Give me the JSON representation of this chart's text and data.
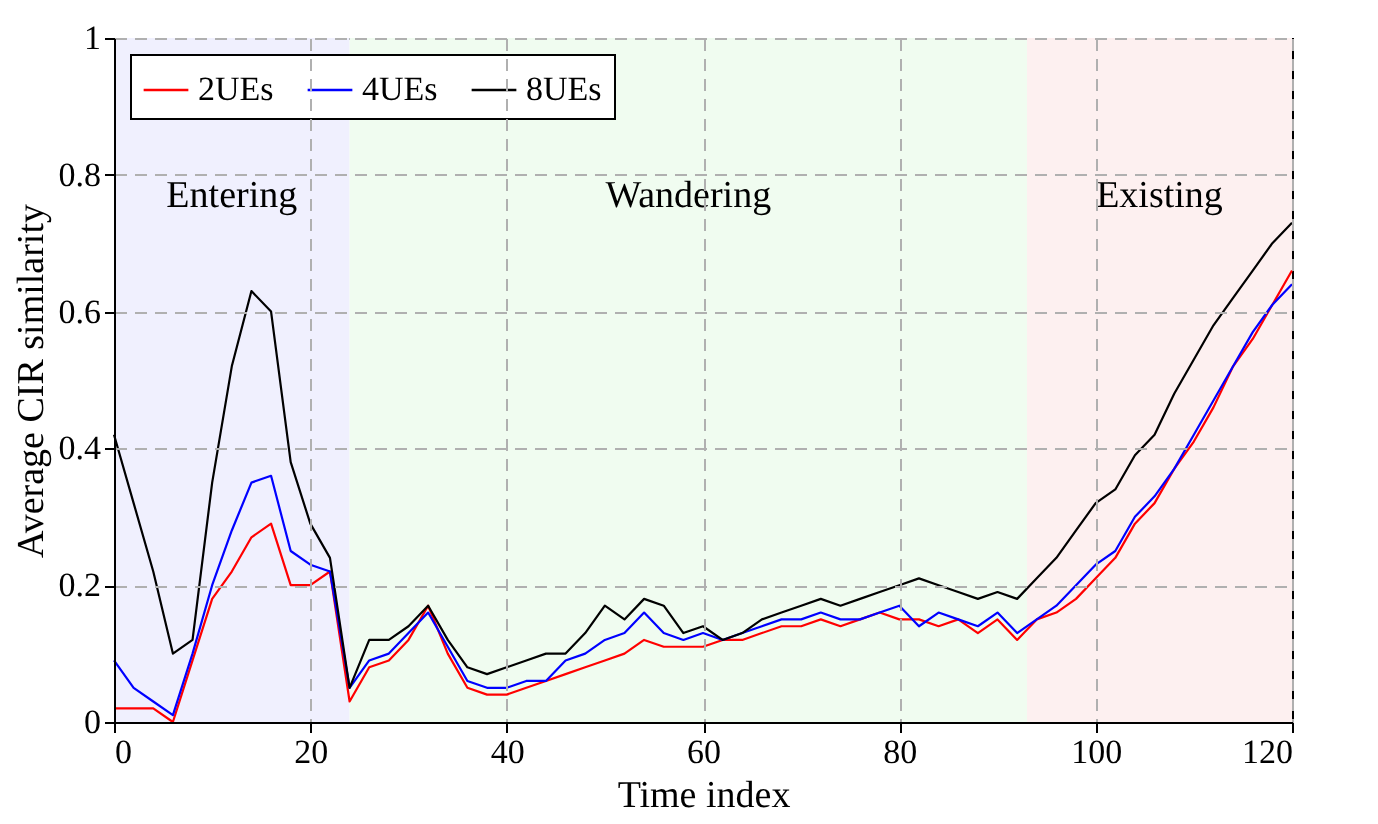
{
  "chart_data": {
    "type": "line",
    "xlabel": "Time index",
    "ylabel": "Average CIR similarity",
    "x": [
      0,
      2,
      4,
      6,
      8,
      10,
      12,
      14,
      16,
      18,
      20,
      22,
      24,
      26,
      28,
      30,
      32,
      34,
      36,
      38,
      40,
      42,
      44,
      46,
      48,
      50,
      52,
      54,
      56,
      58,
      60,
      62,
      64,
      66,
      68,
      70,
      72,
      74,
      76,
      78,
      80,
      82,
      84,
      86,
      88,
      90,
      92,
      94,
      96,
      98,
      100,
      102,
      104,
      106,
      108,
      110,
      112,
      114,
      116,
      118,
      120
    ],
    "series": [
      {
        "name": "2UEs",
        "color": "#ff0000",
        "values": [
          0.02,
          0.02,
          0.02,
          0.0,
          0.09,
          0.18,
          0.22,
          0.27,
          0.29,
          0.2,
          0.2,
          0.22,
          0.03,
          0.08,
          0.09,
          0.12,
          0.17,
          0.1,
          0.05,
          0.04,
          0.04,
          0.05,
          0.06,
          0.07,
          0.08,
          0.09,
          0.1,
          0.12,
          0.11,
          0.11,
          0.11,
          0.12,
          0.12,
          0.13,
          0.14,
          0.14,
          0.15,
          0.14,
          0.15,
          0.16,
          0.15,
          0.15,
          0.14,
          0.15,
          0.13,
          0.15,
          0.12,
          0.15,
          0.16,
          0.18,
          0.21,
          0.24,
          0.29,
          0.32,
          0.37,
          0.41,
          0.46,
          0.52,
          0.56,
          0.61,
          0.66
        ]
      },
      {
        "name": "4UEs",
        "color": "#0000ff",
        "values": [
          0.09,
          0.05,
          0.03,
          0.01,
          0.1,
          0.2,
          0.28,
          0.35,
          0.36,
          0.25,
          0.23,
          0.22,
          0.05,
          0.09,
          0.1,
          0.13,
          0.16,
          0.11,
          0.06,
          0.05,
          0.05,
          0.06,
          0.06,
          0.09,
          0.1,
          0.12,
          0.13,
          0.16,
          0.13,
          0.12,
          0.13,
          0.12,
          0.13,
          0.14,
          0.15,
          0.15,
          0.16,
          0.15,
          0.15,
          0.16,
          0.17,
          0.14,
          0.16,
          0.15,
          0.14,
          0.16,
          0.13,
          0.15,
          0.17,
          0.2,
          0.23,
          0.25,
          0.3,
          0.33,
          0.37,
          0.42,
          0.47,
          0.52,
          0.57,
          0.61,
          0.64
        ]
      },
      {
        "name": "8UEs",
        "color": "#000000",
        "values": [
          0.42,
          0.32,
          0.22,
          0.1,
          0.12,
          0.35,
          0.52,
          0.63,
          0.6,
          0.38,
          0.29,
          0.24,
          0.05,
          0.12,
          0.12,
          0.14,
          0.17,
          0.12,
          0.08,
          0.07,
          0.08,
          0.09,
          0.1,
          0.1,
          0.13,
          0.17,
          0.15,
          0.18,
          0.17,
          0.13,
          0.14,
          0.12,
          0.13,
          0.15,
          0.16,
          0.17,
          0.18,
          0.17,
          0.18,
          0.19,
          0.2,
          0.21,
          0.2,
          0.19,
          0.18,
          0.19,
          0.18,
          0.21,
          0.24,
          0.28,
          0.32,
          0.34,
          0.39,
          0.42,
          0.48,
          0.53,
          0.58,
          0.62,
          0.66,
          0.7,
          0.73
        ]
      }
    ],
    "bands": [
      {
        "axis": "x",
        "from": 0,
        "to": 24,
        "label": "Entering",
        "color": "#f0f0fe"
      },
      {
        "axis": "x",
        "from": 24,
        "to": 93,
        "label": "Wandering",
        "color": "#f0fcf0"
      },
      {
        "axis": "x",
        "from": 93,
        "to": 120,
        "label": "Existing",
        "color": "#fdf0f0"
      }
    ],
    "xlim": [
      0,
      120
    ],
    "ylim": [
      0,
      1
    ],
    "xticks": [
      0,
      20,
      40,
      60,
      80,
      100,
      120
    ],
    "yticks": [
      0,
      0.2,
      0.4,
      0.6,
      0.8,
      1
    ],
    "grid": true,
    "legend": "top left",
    "line_style": "solid",
    "marker": "none"
  }
}
